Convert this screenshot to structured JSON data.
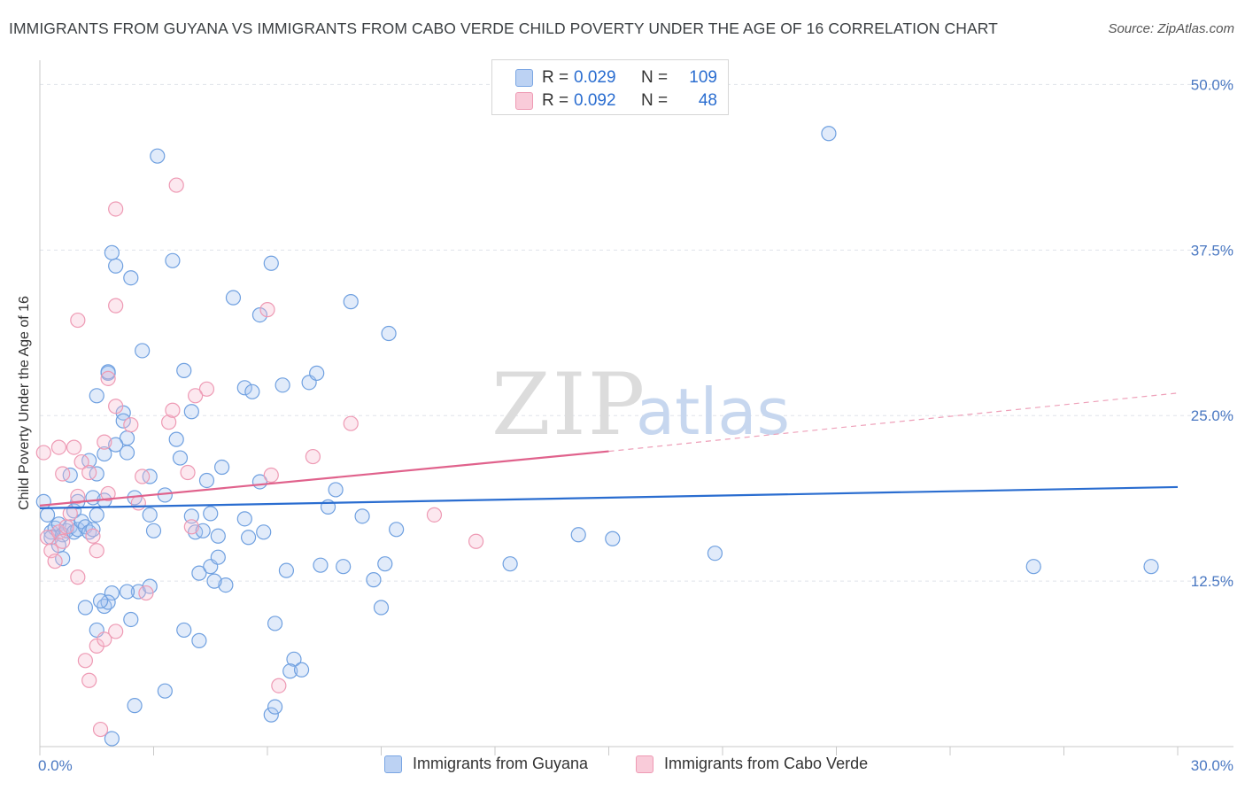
{
  "title": "IMMIGRANTS FROM GUYANA VS IMMIGRANTS FROM CABO VERDE CHILD POVERTY UNDER THE AGE OF 16 CORRELATION CHART",
  "source": "Source: ZipAtlas.com",
  "watermark": {
    "zip": "ZIP",
    "atlas": "atlas"
  },
  "colors": {
    "guyana": "#6fa0e0",
    "guyana_line": "#2a6dd0",
    "caboverde": "#f09ab5",
    "caboverde_line": "#e0628c",
    "tick": "#4a78c2"
  },
  "legend_top": [
    {
      "r_label": "R =",
      "r_value": "0.029",
      "n_label": "N =",
      "n_value": "109"
    },
    {
      "r_label": "R =",
      "r_value": "0.092",
      "n_label": "N =",
      "n_value": "48"
    }
  ],
  "chart_data": {
    "type": "scatter",
    "title": "IMMIGRANTS FROM GUYANA VS IMMIGRANTS FROM CABO VERDE CHILD POVERTY UNDER THE AGE OF 16 CORRELATION CHART",
    "xlabel": "",
    "ylabel": "Child Poverty Under the Age of 16",
    "xlim": [
      0,
      30
    ],
    "ylim": [
      0,
      51.3
    ],
    "x_tick_labels": [
      "0.0%",
      "30.0%"
    ],
    "y_ticks": [
      12.5,
      25.0,
      37.5,
      50.0
    ],
    "y_tick_labels": [
      "12.5%",
      "25.0%",
      "37.5%",
      "50.0%"
    ],
    "grid": true,
    "legend_position": "top-center",
    "series": [
      {
        "name": "Immigrants from Guyana",
        "color": "#6fa0e0",
        "trend": {
          "x": [
            0,
            30
          ],
          "y": [
            18.0,
            19.6
          ],
          "style": "solid"
        },
        "points": [
          [
            0.1,
            18.5
          ],
          [
            0.2,
            17.5
          ],
          [
            0.3,
            16.2
          ],
          [
            0.4,
            16.5
          ],
          [
            0.5,
            16.8
          ],
          [
            0.3,
            15.8
          ],
          [
            0.6,
            16.0
          ],
          [
            0.7,
            16.3
          ],
          [
            0.8,
            16.6
          ],
          [
            0.9,
            17.8
          ],
          [
            0.5,
            15.2
          ],
          [
            0.6,
            14.2
          ],
          [
            0.9,
            16.2
          ],
          [
            1.0,
            16.4
          ],
          [
            1.1,
            17.0
          ],
          [
            1.2,
            16.6
          ],
          [
            1.3,
            16.2
          ],
          [
            1.4,
            16.4
          ],
          [
            1.5,
            17.5
          ],
          [
            0.8,
            20.5
          ],
          [
            1.0,
            18.5
          ],
          [
            1.4,
            18.8
          ],
          [
            1.7,
            18.6
          ],
          [
            1.3,
            21.6
          ],
          [
            1.7,
            22.1
          ],
          [
            1.5,
            20.6
          ],
          [
            1.8,
            28.2
          ],
          [
            1.5,
            26.5
          ],
          [
            1.8,
            28.3
          ],
          [
            2.2,
            25.2
          ],
          [
            2.3,
            23.3
          ],
          [
            2.2,
            24.6
          ],
          [
            2.3,
            22.2
          ],
          [
            2.9,
            20.4
          ],
          [
            3.6,
            23.2
          ],
          [
            3.3,
            19.0
          ],
          [
            2.0,
            22.8
          ],
          [
            2.5,
            18.8
          ],
          [
            3.0,
            16.3
          ],
          [
            2.9,
            17.5
          ],
          [
            2.0,
            36.3
          ],
          [
            1.9,
            37.3
          ],
          [
            2.4,
            35.4
          ],
          [
            2.7,
            29.9
          ],
          [
            3.1,
            44.6
          ],
          [
            3.5,
            36.7
          ],
          [
            3.8,
            28.4
          ],
          [
            4.0,
            25.3
          ],
          [
            3.7,
            21.8
          ],
          [
            4.1,
            16.2
          ],
          [
            4.4,
            20.1
          ],
          [
            4.5,
            17.6
          ],
          [
            4.0,
            17.4
          ],
          [
            4.3,
            16.3
          ],
          [
            4.2,
            13.1
          ],
          [
            4.5,
            13.6
          ],
          [
            4.7,
            15.9
          ],
          [
            4.7,
            14.3
          ],
          [
            4.9,
            12.2
          ],
          [
            5.5,
            15.8
          ],
          [
            4.8,
            21.1
          ],
          [
            5.1,
            33.9
          ],
          [
            5.4,
            27.1
          ],
          [
            5.8,
            32.6
          ],
          [
            5.6,
            26.8
          ],
          [
            5.8,
            20.0
          ],
          [
            5.9,
            16.2
          ],
          [
            5.4,
            17.2
          ],
          [
            6.2,
            9.3
          ],
          [
            6.1,
            2.4
          ],
          [
            6.1,
            36.5
          ],
          [
            6.4,
            27.3
          ],
          [
            6.7,
            6.6
          ],
          [
            6.6,
            5.7
          ],
          [
            6.9,
            5.8
          ],
          [
            6.5,
            13.3
          ],
          [
            7.6,
            18.1
          ],
          [
            7.8,
            19.4
          ],
          [
            7.1,
            27.5
          ],
          [
            7.3,
            28.2
          ],
          [
            7.4,
            13.7
          ],
          [
            8.0,
            13.6
          ],
          [
            8.5,
            17.4
          ],
          [
            8.2,
            33.6
          ],
          [
            9.0,
            10.5
          ],
          [
            8.8,
            12.6
          ],
          [
            9.1,
            13.8
          ],
          [
            9.4,
            16.4
          ],
          [
            9.2,
            31.2
          ],
          [
            12.4,
            13.8
          ],
          [
            14.2,
            16.0
          ],
          [
            15.1,
            15.7
          ],
          [
            17.8,
            14.6
          ],
          [
            20.8,
            46.3
          ],
          [
            26.2,
            13.6
          ],
          [
            29.3,
            13.6
          ],
          [
            1.2,
            10.5
          ],
          [
            1.5,
            8.8
          ],
          [
            1.7,
            10.6
          ],
          [
            1.9,
            11.6
          ],
          [
            1.8,
            10.9
          ],
          [
            1.6,
            11.0
          ],
          [
            2.4,
            9.6
          ],
          [
            2.6,
            11.7
          ],
          [
            2.9,
            12.1
          ],
          [
            2.5,
            3.1
          ],
          [
            3.3,
            4.2
          ],
          [
            3.8,
            8.8
          ],
          [
            4.2,
            8.0
          ],
          [
            6.2,
            3.0
          ],
          [
            1.9,
            0.6
          ],
          [
            2.3,
            11.7
          ],
          [
            4.6,
            12.5
          ]
        ]
      },
      {
        "name": "Immigrants from Cabo Verde",
        "color": "#f09ab5",
        "trend": {
          "x": [
            0,
            15
          ],
          "y": [
            18.2,
            22.3
          ],
          "style": "solid",
          "extend_to": [
            30,
            26.7
          ],
          "extend_style": "dashed"
        },
        "points": [
          [
            0.1,
            22.2
          ],
          [
            0.2,
            15.8
          ],
          [
            0.3,
            14.8
          ],
          [
            0.4,
            14.0
          ],
          [
            0.5,
            16.2
          ],
          [
            0.6,
            15.5
          ],
          [
            0.7,
            16.6
          ],
          [
            0.8,
            17.6
          ],
          [
            0.5,
            22.6
          ],
          [
            0.6,
            20.6
          ],
          [
            0.9,
            22.6
          ],
          [
            1.0,
            18.9
          ],
          [
            1.1,
            21.5
          ],
          [
            1.3,
            20.7
          ],
          [
            1.4,
            15.9
          ],
          [
            1.5,
            14.8
          ],
          [
            1.7,
            23.0
          ],
          [
            1.8,
            19.1
          ],
          [
            1.0,
            12.8
          ],
          [
            1.2,
            6.5
          ],
          [
            1.3,
            5.0
          ],
          [
            1.5,
            7.6
          ],
          [
            1.7,
            8.1
          ],
          [
            2.0,
            8.7
          ],
          [
            1.6,
            1.3
          ],
          [
            1.0,
            32.2
          ],
          [
            1.8,
            27.8
          ],
          [
            2.0,
            25.7
          ],
          [
            2.4,
            24.3
          ],
          [
            2.6,
            18.4
          ],
          [
            2.8,
            11.6
          ],
          [
            2.7,
            20.4
          ],
          [
            2.0,
            40.6
          ],
          [
            2.0,
            33.3
          ],
          [
            3.4,
            24.5
          ],
          [
            3.5,
            25.4
          ],
          [
            3.9,
            20.7
          ],
          [
            3.6,
            42.4
          ],
          [
            4.0,
            16.6
          ],
          [
            4.4,
            27.0
          ],
          [
            4.1,
            26.5
          ],
          [
            6.0,
            33.0
          ],
          [
            6.1,
            20.5
          ],
          [
            6.3,
            4.6
          ],
          [
            7.2,
            21.9
          ],
          [
            8.2,
            24.4
          ],
          [
            10.4,
            17.5
          ],
          [
            11.5,
            15.5
          ]
        ]
      }
    ]
  },
  "legend_bottom": [
    {
      "label": "Immigrants from Guyana"
    },
    {
      "label": "Immigrants from Cabo Verde"
    }
  ]
}
